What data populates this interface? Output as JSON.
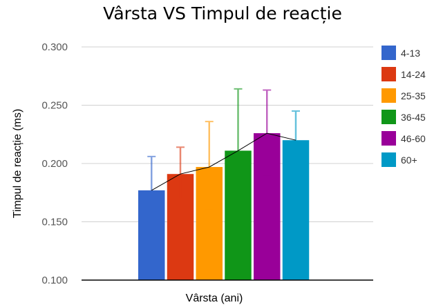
{
  "chart_data": {
    "type": "bar",
    "title": "Vârsta VS Timpul de reacție",
    "xlabel": "Vârsta (ani)",
    "ylabel": "Timpul de reacție (ms)",
    "ylim": [
      0.1,
      0.3
    ],
    "yticks": [
      "0.100",
      "0.150",
      "0.200",
      "0.250",
      "0.300"
    ],
    "grid": true,
    "legend_position": "right",
    "trend_line": true,
    "series": [
      {
        "name": "4-13",
        "value": 0.177,
        "error_low": 0.15,
        "error_high": 0.206,
        "color": "#3366cc"
      },
      {
        "name": "14-24",
        "value": 0.191,
        "error_low": 0.17,
        "error_high": 0.214,
        "color": "#dc3912"
      },
      {
        "name": "25-35",
        "value": 0.197,
        "error_low": 0.16,
        "error_high": 0.236,
        "color": "#ff9900"
      },
      {
        "name": "36-45",
        "value": 0.211,
        "error_low": 0.159,
        "error_high": 0.264,
        "color": "#109618"
      },
      {
        "name": "46-60",
        "value": 0.226,
        "error_low": 0.19,
        "error_high": 0.263,
        "color": "#990099"
      },
      {
        "name": "60+",
        "value": 0.22,
        "error_low": 0.199,
        "error_high": 0.245,
        "color": "#0099c6"
      }
    ]
  }
}
